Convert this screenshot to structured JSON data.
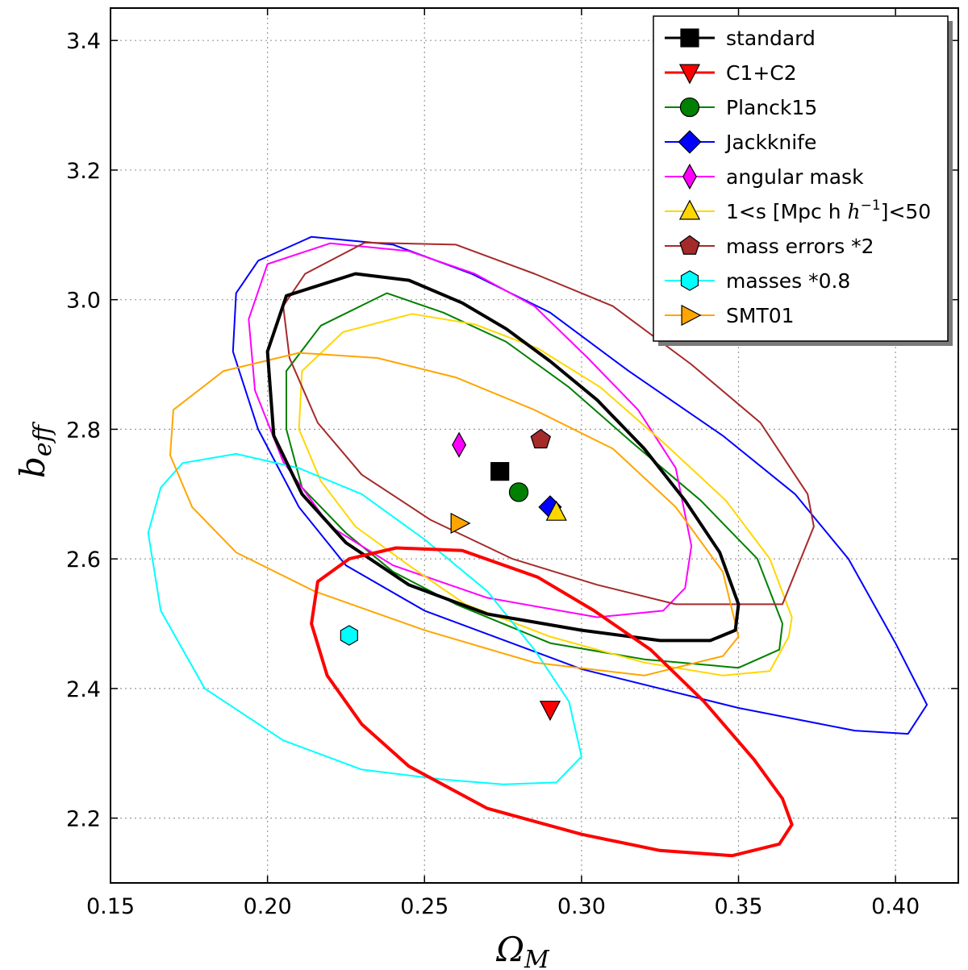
{
  "chart_data": {
    "type": "scatter",
    "title": "",
    "xlabel": "Ω",
    "xlabel_sub": "M",
    "ylabel": "b",
    "ylabel_sub": "eff",
    "xlim": [
      0.15,
      0.42
    ],
    "ylim": [
      2.1,
      3.45
    ],
    "xticks": [
      0.15,
      0.2,
      0.25,
      0.3,
      0.35,
      0.4
    ],
    "xtick_labels": [
      "0.15",
      "0.20",
      "0.25",
      "0.30",
      "0.35",
      "0.40"
    ],
    "yticks": [
      2.2,
      2.4,
      2.6,
      2.8,
      3.0,
      3.2,
      3.4
    ],
    "ytick_labels": [
      "2.2",
      "2.4",
      "2.6",
      "2.8",
      "3.0",
      "3.2",
      "3.4"
    ],
    "grid": true,
    "legend_position": "top-right",
    "series": [
      {
        "name": "standard",
        "label": "standard",
        "color": "#000000",
        "marker": "square",
        "point": [
          0.274,
          2.735
        ],
        "lw": 4,
        "contour": [
          [
            0.206,
            3.006
          ],
          [
            0.228,
            3.04
          ],
          [
            0.245,
            3.03
          ],
          [
            0.262,
            2.995
          ],
          [
            0.276,
            2.955
          ],
          [
            0.29,
            2.905
          ],
          [
            0.305,
            2.845
          ],
          [
            0.32,
            2.77
          ],
          [
            0.333,
            2.69
          ],
          [
            0.344,
            2.61
          ],
          [
            0.35,
            2.53
          ],
          [
            0.349,
            2.49
          ],
          [
            0.341,
            2.474
          ],
          [
            0.325,
            2.474
          ],
          [
            0.3,
            2.49
          ],
          [
            0.27,
            2.515
          ],
          [
            0.245,
            2.56
          ],
          [
            0.225,
            2.625
          ],
          [
            0.211,
            2.7
          ],
          [
            0.202,
            2.79
          ],
          [
            0.2,
            2.92
          ]
        ]
      },
      {
        "name": "C1+C2",
        "label": "C1+C2",
        "color": "#ff0000",
        "marker": "triangle-down",
        "point": [
          0.29,
          2.368
        ],
        "lw": 4,
        "contour": [
          [
            0.241,
            2.617
          ],
          [
            0.262,
            2.613
          ],
          [
            0.286,
            2.572
          ],
          [
            0.304,
            2.52
          ],
          [
            0.322,
            2.46
          ],
          [
            0.339,
            2.38
          ],
          [
            0.355,
            2.29
          ],
          [
            0.364,
            2.23
          ],
          [
            0.367,
            2.19
          ],
          [
            0.363,
            2.16
          ],
          [
            0.348,
            2.142
          ],
          [
            0.325,
            2.15
          ],
          [
            0.3,
            2.175
          ],
          [
            0.27,
            2.215
          ],
          [
            0.245,
            2.28
          ],
          [
            0.23,
            2.345
          ],
          [
            0.219,
            2.42
          ],
          [
            0.214,
            2.5
          ],
          [
            0.216,
            2.565
          ],
          [
            0.226,
            2.6
          ]
        ]
      },
      {
        "name": "Planck15",
        "label": "Planck15",
        "color": "#008000",
        "marker": "circle",
        "point": [
          0.28,
          2.703
        ],
        "lw": 2,
        "contour": [
          [
            0.217,
            2.96
          ],
          [
            0.238,
            3.01
          ],
          [
            0.256,
            2.98
          ],
          [
            0.276,
            2.935
          ],
          [
            0.296,
            2.865
          ],
          [
            0.316,
            2.78
          ],
          [
            0.338,
            2.69
          ],
          [
            0.356,
            2.6
          ],
          [
            0.364,
            2.5
          ],
          [
            0.363,
            2.46
          ],
          [
            0.35,
            2.432
          ],
          [
            0.32,
            2.445
          ],
          [
            0.29,
            2.47
          ],
          [
            0.26,
            2.53
          ],
          [
            0.24,
            2.58
          ],
          [
            0.225,
            2.64
          ],
          [
            0.211,
            2.71
          ],
          [
            0.206,
            2.8
          ],
          [
            0.206,
            2.89
          ]
        ]
      },
      {
        "name": "Jackknife",
        "label": "Jackknife",
        "color": "#0000ff",
        "marker": "diamond",
        "point": [
          0.29,
          2.68
        ],
        "lw": 2,
        "contour": [
          [
            0.197,
            3.06
          ],
          [
            0.214,
            3.097
          ],
          [
            0.24,
            3.085
          ],
          [
            0.265,
            3.04
          ],
          [
            0.29,
            2.98
          ],
          [
            0.315,
            2.89
          ],
          [
            0.345,
            2.79
          ],
          [
            0.368,
            2.7
          ],
          [
            0.385,
            2.6
          ],
          [
            0.4,
            2.47
          ],
          [
            0.41,
            2.375
          ],
          [
            0.404,
            2.33
          ],
          [
            0.387,
            2.335
          ],
          [
            0.35,
            2.37
          ],
          [
            0.3,
            2.43
          ],
          [
            0.25,
            2.52
          ],
          [
            0.225,
            2.59
          ],
          [
            0.21,
            2.68
          ],
          [
            0.197,
            2.8
          ],
          [
            0.189,
            2.92
          ],
          [
            0.19,
            3.01
          ]
        ]
      },
      {
        "name": "angular mask",
        "label": "angular mask",
        "color": "#ff00ff",
        "marker": "thin-diamond",
        "point": [
          0.261,
          2.776
        ],
        "lw": 2,
        "contour": [
          [
            0.2,
            3.055
          ],
          [
            0.22,
            3.087
          ],
          [
            0.245,
            3.075
          ],
          [
            0.266,
            3.04
          ],
          [
            0.285,
            2.99
          ],
          [
            0.302,
            2.91
          ],
          [
            0.318,
            2.83
          ],
          [
            0.33,
            2.74
          ],
          [
            0.335,
            2.62
          ],
          [
            0.333,
            2.555
          ],
          [
            0.326,
            2.52
          ],
          [
            0.305,
            2.51
          ],
          [
            0.27,
            2.54
          ],
          [
            0.24,
            2.59
          ],
          [
            0.22,
            2.65
          ],
          [
            0.205,
            2.75
          ],
          [
            0.196,
            2.86
          ],
          [
            0.194,
            2.97
          ]
        ]
      },
      {
        "name": "1<s [Mpc h^-1]<50",
        "label": "1<s [Mpc h",
        "label_sup": "−1",
        "label_end": "]<50",
        "color": "#ffd700",
        "marker": "triangle-up",
        "point": [
          0.292,
          2.672
        ],
        "lw": 2,
        "contour": [
          [
            0.224,
            2.95
          ],
          [
            0.246,
            2.978
          ],
          [
            0.266,
            2.962
          ],
          [
            0.286,
            2.925
          ],
          [
            0.306,
            2.865
          ],
          [
            0.326,
            2.78
          ],
          [
            0.346,
            2.69
          ],
          [
            0.36,
            2.6
          ],
          [
            0.367,
            2.51
          ],
          [
            0.366,
            2.48
          ],
          [
            0.36,
            2.427
          ],
          [
            0.345,
            2.42
          ],
          [
            0.32,
            2.44
          ],
          [
            0.29,
            2.48
          ],
          [
            0.263,
            2.53
          ],
          [
            0.245,
            2.59
          ],
          [
            0.228,
            2.65
          ],
          [
            0.217,
            2.72
          ],
          [
            0.21,
            2.8
          ],
          [
            0.211,
            2.89
          ]
        ]
      },
      {
        "name": "mass errors *2",
        "label": "mass errors *2",
        "color": "#a52a2a",
        "marker": "pentagon",
        "point": [
          0.287,
          2.784
        ],
        "lw": 2,
        "contour": [
          [
            0.212,
            3.04
          ],
          [
            0.231,
            3.088
          ],
          [
            0.26,
            3.085
          ],
          [
            0.285,
            3.04
          ],
          [
            0.31,
            2.99
          ],
          [
            0.335,
            2.9
          ],
          [
            0.357,
            2.81
          ],
          [
            0.372,
            2.7
          ],
          [
            0.374,
            2.65
          ],
          [
            0.364,
            2.53
          ],
          [
            0.33,
            2.53
          ],
          [
            0.305,
            2.56
          ],
          [
            0.278,
            2.6
          ],
          [
            0.252,
            2.66
          ],
          [
            0.23,
            2.73
          ],
          [
            0.216,
            2.81
          ],
          [
            0.207,
            2.91
          ],
          [
            0.205,
            2.99
          ]
        ]
      },
      {
        "name": "masses *0.8",
        "label": "masses *0.8",
        "color": "#00ffff",
        "marker": "hexagon",
        "point": [
          0.226,
          2.482
        ],
        "lw": 2,
        "contour": [
          [
            0.173,
            2.748
          ],
          [
            0.19,
            2.762
          ],
          [
            0.21,
            2.74
          ],
          [
            0.23,
            2.7
          ],
          [
            0.25,
            2.63
          ],
          [
            0.27,
            2.55
          ],
          [
            0.285,
            2.46
          ],
          [
            0.296,
            2.38
          ],
          [
            0.3,
            2.295
          ],
          [
            0.292,
            2.255
          ],
          [
            0.275,
            2.252
          ],
          [
            0.255,
            2.26
          ],
          [
            0.23,
            2.275
          ],
          [
            0.205,
            2.32
          ],
          [
            0.18,
            2.4
          ],
          [
            0.166,
            2.52
          ],
          [
            0.162,
            2.64
          ],
          [
            0.166,
            2.71
          ]
        ]
      },
      {
        "name": "SMT01",
        "label": "SMT01",
        "color": "#ffa500",
        "marker": "triangle-right",
        "point": [
          0.261,
          2.655
        ],
        "lw": 2,
        "contour": [
          [
            0.186,
            2.89
          ],
          [
            0.21,
            2.918
          ],
          [
            0.235,
            2.91
          ],
          [
            0.26,
            2.88
          ],
          [
            0.285,
            2.83
          ],
          [
            0.31,
            2.77
          ],
          [
            0.33,
            2.68
          ],
          [
            0.345,
            2.58
          ],
          [
            0.35,
            2.48
          ],
          [
            0.345,
            2.45
          ],
          [
            0.32,
            2.42
          ],
          [
            0.285,
            2.44
          ],
          [
            0.25,
            2.49
          ],
          [
            0.215,
            2.55
          ],
          [
            0.19,
            2.61
          ],
          [
            0.176,
            2.68
          ],
          [
            0.169,
            2.76
          ],
          [
            0.17,
            2.83
          ]
        ]
      }
    ]
  }
}
